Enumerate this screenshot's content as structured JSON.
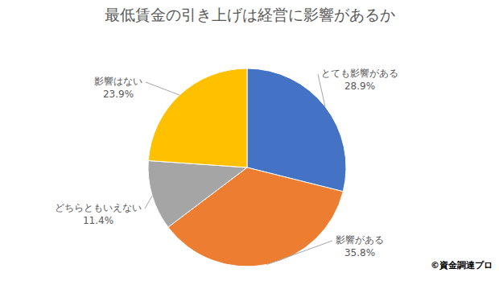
{
  "chart_data": {
    "type": "pie",
    "title": "最低賃金の引き上げは経営に影響があるか",
    "categories": [
      "とても影響がある",
      "影響がある",
      "どちらともいえない",
      "影響はない"
    ],
    "values": [
      28.9,
      35.8,
      11.4,
      23.9
    ],
    "value_labels": [
      "28.9%",
      "35.8%",
      "11.4%",
      "23.9%"
    ],
    "colors": [
      "#4472c4",
      "#ed7d31",
      "#a5a5a5",
      "#ffc000"
    ],
    "data_labels": true,
    "annotation": "©資金調達プロ"
  }
}
